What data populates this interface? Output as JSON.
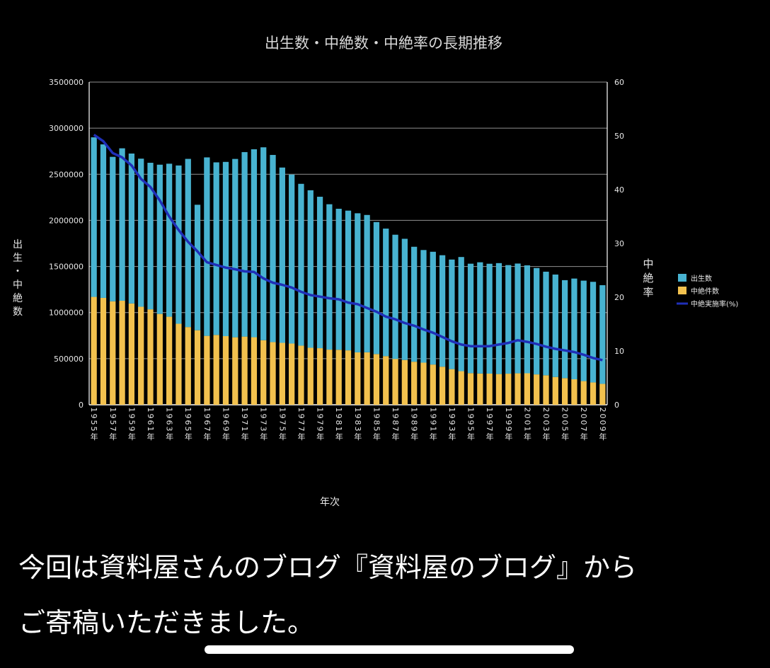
{
  "caption": {
    "line1": "今回は資料屋さんのブログ『資料屋のブログ』から",
    "line2": "ご寄稿いただきました。"
  },
  "colors": {
    "births": "#48b3d1",
    "abortions": "#f2c14e",
    "rate": "#1f2fb8",
    "grid": "#cfcfcf",
    "background": "#000000",
    "text": "#ffffff"
  },
  "chart_data": {
    "type": "bar",
    "title": "出生数・中絶数・中絶率の長期推移",
    "xlabel": "年次",
    "ylabel": "出生・中絶数",
    "y2label": "中絶率",
    "ylim": [
      0,
      3500000
    ],
    "y2lim": [
      0,
      60
    ],
    "yticks": [
      "0",
      "500000",
      "1000000",
      "1500000",
      "2000000",
      "2500000",
      "3000000",
      "3500000"
    ],
    "y2ticks": [
      "0",
      "10",
      "20",
      "30",
      "40",
      "50",
      "60"
    ],
    "grid": true,
    "stacked": true,
    "legend_position": "right",
    "categories": [
      "1955",
      "1956",
      "1957",
      "1958",
      "1959",
      "1960",
      "1961",
      "1962",
      "1963",
      "1964",
      "1965",
      "1966",
      "1967",
      "1968",
      "1969",
      "1970",
      "1971",
      "1972",
      "1973",
      "1974",
      "1975",
      "1976",
      "1977",
      "1978",
      "1979",
      "1980",
      "1981",
      "1982",
      "1983",
      "1984",
      "1985",
      "1986",
      "1987",
      "1988",
      "1989",
      "1990",
      "1991",
      "1992",
      "1993",
      "1994",
      "1995",
      "1996",
      "1997",
      "1998",
      "1999",
      "2000",
      "2001",
      "2002",
      "2003",
      "2004",
      "2005",
      "2006",
      "2007",
      "2008",
      "2009"
    ],
    "x_tick_labels": [
      "1955年",
      "1957年",
      "1959年",
      "1961年",
      "1963年",
      "1965年",
      "1967年",
      "1969年",
      "1971年",
      "1973年",
      "1975年",
      "1977年",
      "1979年",
      "1981年",
      "1983年",
      "1985年",
      "1987年",
      "1989年",
      "1991年",
      "1993年",
      "1995年",
      "1997年",
      "1999年",
      "2001年",
      "2003年",
      "2005年",
      "2007年",
      "2009年"
    ],
    "series": [
      {
        "name": "出生数",
        "type": "bar",
        "axis": "left",
        "values": [
          1730692,
          1665278,
          1566713,
          1653469,
          1626088,
          1606041,
          1589372,
          1618616,
          1659521,
          1716761,
          1823697,
          1360974,
          1935647,
          1871839,
          1889815,
          1934239,
          2000973,
          2038682,
          2091983,
          2029989,
          1901440,
          1832617,
          1755100,
          1708643,
          1642580,
          1576889,
          1529455,
          1515392,
          1508687,
          1489780,
          1431577,
          1382946,
          1346658,
          1314006,
          1246802,
          1221585,
          1223245,
          1208989,
          1188282,
          1238328,
          1187064,
          1206555,
          1191665,
          1203147,
          1177669,
          1190547,
          1170662,
          1153855,
          1123610,
          1110721,
          1062530,
          1092674,
          1089818,
          1091156,
          1070035
        ]
      },
      {
        "name": "中絶件数",
        "type": "bar",
        "axis": "left",
        "values": [
          1170143,
          1159288,
          1122316,
          1128231,
          1098853,
          1063256,
          1035329,
          985351,
          955092,
          878748,
          843248,
          808378,
          747490,
          757389,
          744451,
          732033,
          739674,
          732653,
          700532,
          679837,
          671597,
          664106,
          641242,
          618044,
          613676,
          598084,
          596569,
          590299,
          568363,
          568916,
          550127,
          527900,
          497756,
          486146,
          466876,
          456797,
          436299,
          413032,
          386807,
          364350,
          343024,
          338867,
          337799,
          333220,
          337314,
          341146,
          341588,
          329326,
          319831,
          301673,
          289127,
          276352,
          256672,
          242326,
          226878
        ]
      },
      {
        "name": "中絶実施率(%)",
        "type": "line",
        "axis": "right",
        "values": [
          50.2,
          49,
          46.8,
          46,
          44.5,
          42,
          40.5,
          38,
          35,
          32.5,
          30.3,
          28.5,
          26.5,
          26,
          25.5,
          25.2,
          24.8,
          24.7,
          23.5,
          22.7,
          22.3,
          21.8,
          21,
          20.4,
          20.1,
          19.8,
          19.6,
          19,
          18.7,
          18,
          17.3,
          16.4,
          15.9,
          15.2,
          14.7,
          14,
          13.4,
          12.6,
          11.8,
          11.2,
          10.9,
          10.9,
          10.9,
          11.2,
          11.5,
          12,
          11.7,
          11.3,
          10.8,
          10.4,
          10.1,
          9.8,
          9.3,
          8.7,
          8.3
        ]
      }
    ]
  }
}
